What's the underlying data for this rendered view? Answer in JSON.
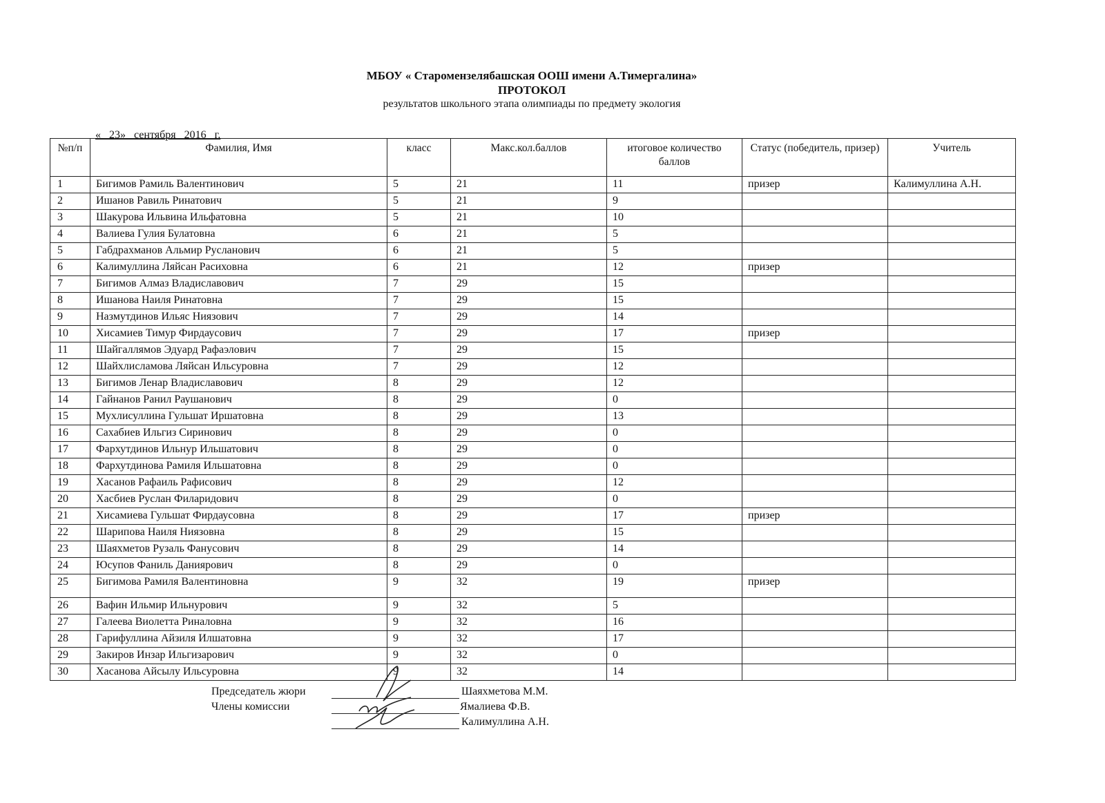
{
  "header": {
    "school": "МБОУ « Старомензелябашская ООШ имени А.Тимергалина»",
    "doc_title": "ПРОТОКОЛ",
    "subtitle": "результатов школьного этапа олимпиады по предмету экология",
    "date": "« 23»  сентября  2016  г."
  },
  "table": {
    "columns": [
      "№п/п",
      "Фамилия, Имя",
      "класс",
      "Макс.кол.баллов",
      "итоговое количество баллов",
      "Статус (победитель, призер)",
      "Учитель"
    ],
    "rows": [
      [
        "1",
        "Бигимов Рамиль Валентинович",
        "5",
        "21",
        "11",
        "призер",
        "Калимуллина А.Н."
      ],
      [
        "2",
        "Ишанов Равиль Ринатович",
        "5",
        "21",
        "9",
        "",
        ""
      ],
      [
        "3",
        "Шакурова Ильвина Ильфатовна",
        "5",
        "21",
        "10",
        "",
        ""
      ],
      [
        "4",
        "Валиева Гулия Булатовна",
        "6",
        "21",
        "5",
        "",
        ""
      ],
      [
        "5",
        "Габдрахманов Альмир Русланович",
        "6",
        "21",
        "5",
        "",
        ""
      ],
      [
        "6",
        "Калимуллина Ляйсан Расиховна",
        "6",
        "21",
        "12",
        "призер",
        ""
      ],
      [
        "7",
        "Бигимов Алмаз Владиславович",
        "7",
        "29",
        "15",
        "",
        ""
      ],
      [
        "8",
        "Ишанова Наиля Ринатовна",
        "7",
        "29",
        "15",
        "",
        ""
      ],
      [
        "9",
        "Назмутдинов Ильяс Ниязович",
        "7",
        "29",
        "14",
        "",
        ""
      ],
      [
        "10",
        "Хисамиев Тимур Фирдаусович",
        "7",
        "29",
        "17",
        "призер",
        ""
      ],
      [
        "11",
        "Шайгаллямов Эдуард Рафаэлович",
        "7",
        "29",
        "15",
        "",
        ""
      ],
      [
        "12",
        "Шайхлисламова Ляйсан Ильсуровна",
        "7",
        "29",
        "12",
        "",
        ""
      ],
      [
        "13",
        "Бигимов Ленар Владиславович",
        "8",
        "29",
        "12",
        "",
        ""
      ],
      [
        "14",
        "Гайнанов Ранил Раушанович",
        "8",
        "29",
        "0",
        "",
        ""
      ],
      [
        "15",
        "Мухлисуллина Гульшат Иршатовна",
        "8",
        "29",
        "13",
        "",
        ""
      ],
      [
        "16",
        "Сахабиев Ильгиз Сиринович",
        "8",
        "29",
        "0",
        "",
        ""
      ],
      [
        "17",
        "Фархутдинов Ильнур Ильшатович",
        "8",
        "29",
        "0",
        "",
        ""
      ],
      [
        "18",
        "Фархутдинова Рамиля Ильшатовна",
        "8",
        "29",
        "0",
        "",
        ""
      ],
      [
        "19",
        "Хасанов Рафаиль Рафисович",
        "8",
        "29",
        "12",
        "",
        ""
      ],
      [
        "20",
        "Хасбиев Руслан Филаридович",
        "8",
        "29",
        "0",
        "",
        ""
      ],
      [
        "21",
        "Хисамиева Гульшат Фирдаусовна",
        "8",
        "29",
        "17",
        "призер",
        ""
      ],
      [
        "22",
        "Шарипова Наиля Ниязовна",
        "8",
        "29",
        "15",
        "",
        ""
      ],
      [
        "23",
        "Шаяхметов Рузаль Фанусович",
        "8",
        "29",
        "14",
        "",
        ""
      ],
      [
        "24",
        "Юсупов Фаниль Даниярович",
        "8",
        "29",
        "0",
        "",
        ""
      ],
      [
        "25",
        "Бигимова Рамиля Валентиновна",
        "9",
        "32",
        "19",
        "призер",
        ""
      ],
      [
        "26",
        "Вафин Ильмир Ильнурович",
        "9",
        "32",
        "5",
        "",
        ""
      ],
      [
        "27",
        "Галеева Виолетта Риналовна",
        "9",
        "32",
        "16",
        "",
        ""
      ],
      [
        "28",
        "Гарифуллина Айзиля Илшатовна",
        "9",
        "32",
        "17",
        "",
        ""
      ],
      [
        "29",
        "Закиров Инзар Ильгизарович",
        "9",
        "32",
        "0",
        "",
        ""
      ],
      [
        "30",
        "Хасанова Айсылу Ильсуровна",
        "9",
        "32",
        "14",
        "",
        ""
      ]
    ]
  },
  "signatures": {
    "chair_label": "Председатель жюри",
    "members_label": "Члены комиссии",
    "chair_name": "Шаяхметова М.М.",
    "member1_name": "Ямалиева Ф.В.",
    "member2_name": "Калимуллина А.Н."
  }
}
